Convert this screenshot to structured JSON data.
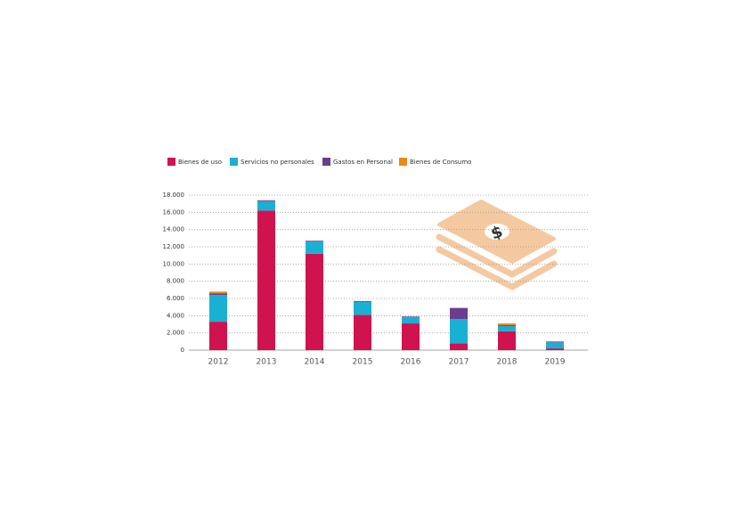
{
  "chart_data": {
    "type": "stacked-bar",
    "categories": [
      "2012",
      "2013",
      "2014",
      "2015",
      "2016",
      "2017",
      "2018",
      "2019"
    ],
    "series": [
      {
        "name": "Bienes de uso",
        "color": "#d0134f",
        "values": [
          3300,
          16200,
          11200,
          4100,
          3100,
          800,
          2200,
          200
        ]
      },
      {
        "name": "Servicios no personales",
        "color": "#1ab0d4",
        "values": [
          3100,
          1100,
          1400,
          1500,
          700,
          2800,
          600,
          700
        ]
      },
      {
        "name": "Gastos en Personal",
        "color": "#6a3d8f",
        "values": [
          200,
          100,
          100,
          100,
          100,
          1300,
          100,
          100
        ]
      },
      {
        "name": "Bienes de Consumo",
        "color": "#e8891a",
        "values": [
          200,
          0,
          0,
          0,
          0,
          0,
          200,
          0
        ]
      }
    ],
    "ylim": [
      0,
      18000
    ],
    "yticks": [
      0,
      {
        "value": 2000,
        "label": "2.000"
      },
      {
        "value": 4000,
        "label": "4.000"
      },
      {
        "value": 6000,
        "label": "6.000"
      },
      {
        "value": 8000,
        "label": "8.000"
      },
      {
        "value": 10000,
        "label": "10.000"
      },
      {
        "value": 12000,
        "label": "12.000"
      },
      {
        "value": 14000,
        "label": "14.000"
      },
      {
        "value": 16000,
        "label": "16.000"
      },
      {
        "value": 18000,
        "label": "18.000"
      }
    ],
    "grid": true
  }
}
